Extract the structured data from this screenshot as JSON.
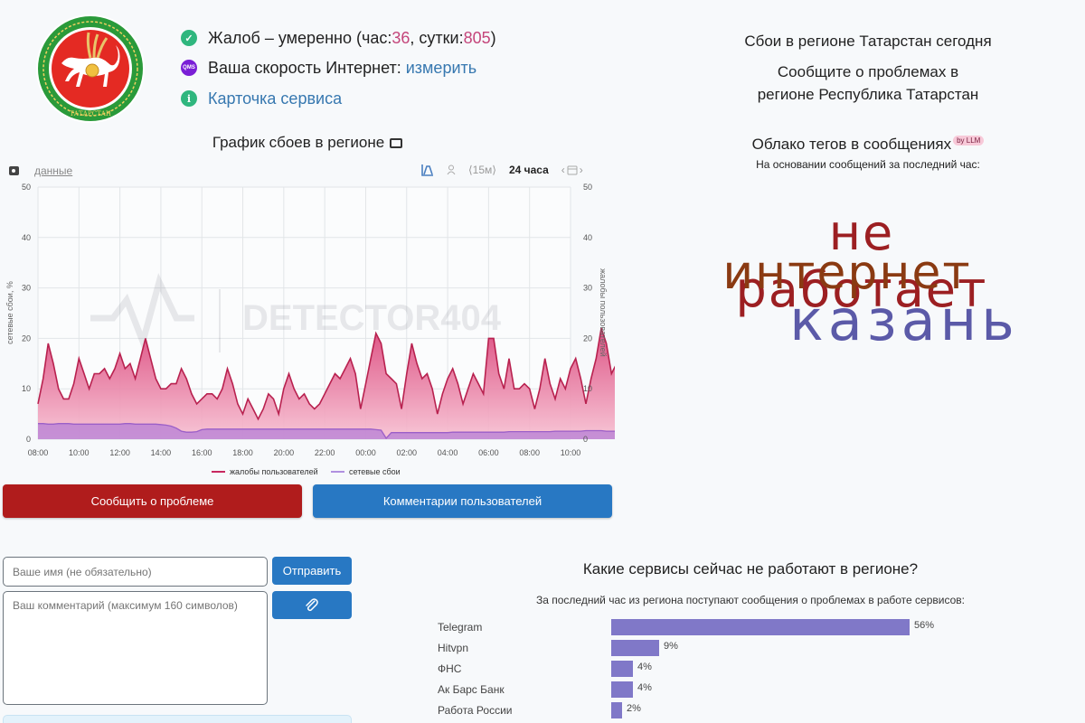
{
  "header": {
    "status": {
      "prefix": "Жалоб – умеренно (час: ",
      "hour_value": "36",
      "mid": ", сутки: ",
      "day_value": "805",
      "suffix": ")"
    },
    "speed": {
      "label": "Ваша скорость Интернет: ",
      "link": "измерить",
      "icon_label": "QMS"
    },
    "service_card": {
      "link": "Карточка сервиса"
    },
    "emblem_text": "ТАТАРСТАН"
  },
  "right_header": {
    "title": "Сбои в регионе Татарстан сегодня",
    "subtitle_line1": "Сообщите о проблемах в",
    "subtitle_line2": "регионе Республика Татарстан"
  },
  "chart_section": {
    "title": "График сбоев в регионе",
    "data_link": "данные",
    "interval": "⟨15м⟩",
    "range": "24 часа",
    "watermark": "DETECTOR404"
  },
  "chart_data": {
    "type": "area",
    "title": "График сбоев в регионе",
    "ylabel_left": "сетевые сбои, %",
    "ylabel_right": "жалобы пользователей",
    "ylim": [
      0,
      50
    ],
    "yticks": [
      0,
      10,
      20,
      30,
      40,
      50
    ],
    "xticks": [
      "08:00",
      "10:00",
      "12:00",
      "14:00",
      "16:00",
      "18:00",
      "20:00",
      "22:00",
      "00:00",
      "02:00",
      "04:00",
      "06:00",
      "08:00",
      "10:00"
    ],
    "grid": true,
    "legend_position": "bottom",
    "x_start_hour": 8,
    "x_end_hour": 34,
    "interval_minutes": 15,
    "series": [
      {
        "name": "жалобы пользователей",
        "color": "#c8285f",
        "values": [
          7,
          12,
          19,
          15,
          10,
          8,
          8,
          11,
          16,
          13,
          10,
          13,
          13,
          14,
          12,
          14,
          17,
          14,
          15,
          12,
          16,
          20,
          16,
          12,
          10,
          10,
          11,
          11,
          14,
          12,
          9,
          7,
          8,
          9,
          9,
          8,
          10,
          14,
          11,
          7,
          5,
          8,
          6,
          4,
          6,
          9,
          8,
          5,
          10,
          13,
          10,
          8,
          9,
          7,
          6,
          7,
          9,
          11,
          13,
          12,
          14,
          16,
          13,
          6,
          11,
          16,
          21,
          19,
          13,
          12,
          11,
          6,
          13,
          19,
          15,
          12,
          13,
          10,
          5,
          9,
          12,
          14,
          11,
          7,
          10,
          13,
          11,
          9,
          20,
          20,
          13,
          10,
          16,
          10,
          10,
          11,
          10,
          6,
          10,
          16,
          11,
          8,
          12,
          10,
          14,
          16,
          12,
          7,
          12,
          16,
          22,
          19,
          13,
          15,
          17,
          13,
          10,
          14,
          20,
          15,
          7,
          14,
          21,
          18,
          17,
          12,
          6,
          9,
          12,
          11,
          9,
          11,
          7,
          9,
          8,
          6,
          7,
          9,
          12,
          11,
          6,
          11,
          14,
          9,
          8,
          5,
          7,
          11,
          10,
          10,
          8,
          2,
          5,
          7,
          5,
          4,
          5,
          5,
          5,
          4,
          5,
          6,
          4,
          2,
          3,
          4,
          3,
          4,
          6,
          5,
          4,
          2,
          1,
          0,
          3,
          2,
          1,
          1,
          1,
          1,
          2,
          0,
          0,
          0,
          1,
          1,
          0,
          1,
          1,
          2,
          1,
          0,
          0,
          3,
          4,
          3,
          4,
          1,
          1,
          5,
          4,
          4,
          5,
          5,
          3,
          1,
          2,
          4,
          8,
          7,
          5,
          3,
          4,
          6,
          5,
          7,
          9,
          10,
          9,
          12
        ]
      },
      {
        "name": "сетевые сбои",
        "color": "#a070d0",
        "values": [
          3.1,
          3.1,
          3.0,
          3.0,
          3.1,
          3.1,
          3.1,
          3.0,
          3.0,
          3.0,
          3.0,
          3.0,
          3.0,
          3.0,
          3.0,
          3.0,
          3.0,
          3.1,
          3.1,
          3.0,
          3.0,
          3.0,
          3.0,
          3.0,
          2.9,
          2.8,
          2.6,
          2.2,
          1.6,
          1.4,
          1.4,
          1.5,
          1.9,
          2.0,
          2.0,
          2.0,
          2.0,
          2.0,
          2.0,
          2.0,
          2.0,
          2.0,
          2.0,
          2.0,
          2.0,
          2.0,
          2.0,
          2.0,
          2.0,
          2.0,
          2.0,
          2.0,
          2.0,
          2.0,
          2.0,
          2.0,
          2.0,
          2.0,
          2.0,
          2.0,
          2.0,
          2.0,
          2.0,
          2.0,
          2.0,
          2.0,
          1.9,
          1.8,
          0.2,
          1.3,
          1.3,
          1.3,
          1.3,
          1.3,
          1.3,
          1.3,
          1.3,
          1.3,
          1.3,
          1.3,
          1.3,
          1.4,
          1.4,
          1.4,
          1.4,
          1.4,
          1.4,
          1.4,
          1.4,
          1.4,
          1.4,
          1.4,
          1.5,
          1.5,
          1.5,
          1.5,
          1.5,
          1.5,
          1.5,
          1.5,
          1.5,
          1.6,
          1.6,
          1.6,
          1.6,
          1.6,
          1.6,
          1.7,
          1.7,
          1.7,
          1.7,
          1.6,
          1.6,
          1.6,
          1.6,
          1.6,
          1.6,
          1.6,
          1.6,
          1.6,
          1.7,
          1.8,
          1.8,
          1.8,
          1.7,
          1.7,
          1.7,
          1.7,
          1.7,
          1.7,
          1.7,
          1.7,
          1.7,
          1.6,
          1.6,
          1.6,
          1.6,
          1.6,
          1.6,
          1.7,
          1.6,
          1.6,
          1.6,
          1.5,
          1.5,
          1.5,
          1.5,
          1.5,
          1.5,
          1.5,
          1.5,
          1.5,
          1.5,
          1.5,
          1.5,
          1.5,
          1.5,
          1.5,
          1.5,
          1.5,
          1.5,
          1.5,
          1.5,
          1.5,
          1.5,
          1.5,
          1.5,
          1.5,
          1.5,
          1.5,
          1.5,
          1.5,
          1.5,
          1.5,
          1.5,
          1.5,
          1.5,
          1.5,
          1.5,
          1.5,
          1.5,
          1.5,
          1.5,
          1.5,
          1.5,
          1.5,
          1.5,
          1.5,
          1.5,
          1.5,
          1.5,
          1.5,
          1.5,
          1.5,
          1.5,
          1.5,
          1.5,
          1.5,
          1.5,
          1.5,
          1.5,
          1.5,
          1.5,
          1.5,
          1.5,
          1.5,
          1.5,
          1.5,
          1.5,
          1.5,
          1.5,
          1.5,
          1.5,
          1.5,
          1.5,
          1.5
        ]
      }
    ]
  },
  "buttons": {
    "report": "Сообщить о проблеме",
    "comments": "Комментарии пользователей",
    "send": "Отправить"
  },
  "form": {
    "name_placeholder": "Ваше имя (не обязательно)",
    "comment_placeholder": "Ваш комментарий (максимум 160 символов)"
  },
  "tag_cloud": {
    "title": "Облако тегов в сообщениях",
    "badge": "by LLM",
    "subtitle": "На основании сообщений за последний час:",
    "tags": [
      {
        "text": "не работает",
        "color": "#9c1f22"
      },
      {
        "text": "интернет",
        "color": "#8a3a12"
      },
      {
        "text": "казань",
        "color": "#5b5aa8"
      }
    ]
  },
  "services": {
    "title": "Какие сервисы сейчас не работают в регионе?",
    "subtitle": "За последний час из региона поступают сообщения о проблемах в работе сервисов:",
    "bar_color": "#8078c8",
    "items": [
      {
        "name": "Telegram",
        "pct": 56,
        "label": "56%"
      },
      {
        "name": "Hitvpn",
        "pct": 9,
        "label": "9%"
      },
      {
        "name": "ФНС",
        "pct": 4,
        "label": "4%"
      },
      {
        "name": "Ак Барс Банк",
        "pct": 4,
        "label": "4%"
      },
      {
        "name": "Работа России",
        "pct": 2,
        "label": "2%"
      }
    ]
  }
}
